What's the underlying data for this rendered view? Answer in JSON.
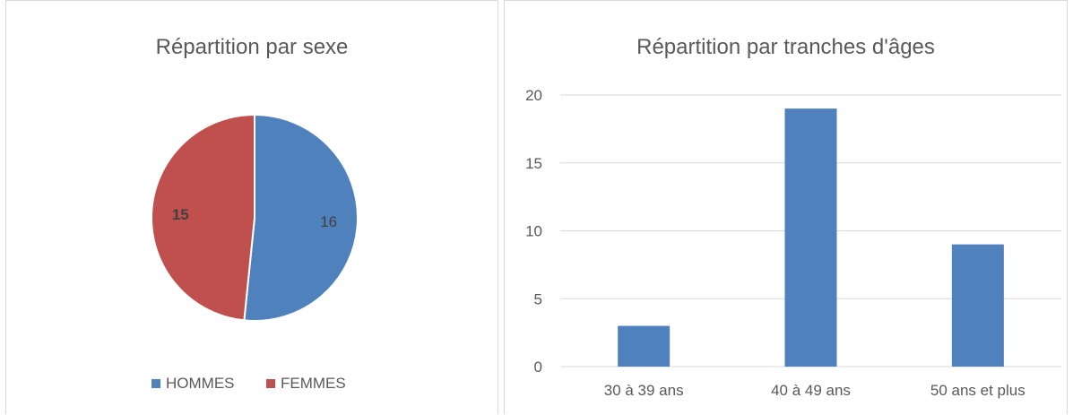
{
  "chart_data": [
    {
      "type": "pie",
      "title": "Répartition par sexe",
      "categories": [
        "HOMMES",
        "FEMMES"
      ],
      "values": [
        16,
        15
      ],
      "colors": [
        "#4f81bd",
        "#c0504d"
      ],
      "data_labels": [
        "16",
        "15"
      ],
      "legend": "bottom"
    },
    {
      "type": "bar",
      "title": "Répartition par tranches d'âges",
      "categories": [
        "30 à 39 ans",
        "40 à 49 ans",
        "50 ans et plus"
      ],
      "values": [
        3,
        19,
        9
      ],
      "ylim": [
        0,
        20
      ],
      "yticks": [
        "0",
        "5",
        "10",
        "15",
        "20"
      ],
      "grid": true,
      "color": "#4f81bd"
    }
  ]
}
